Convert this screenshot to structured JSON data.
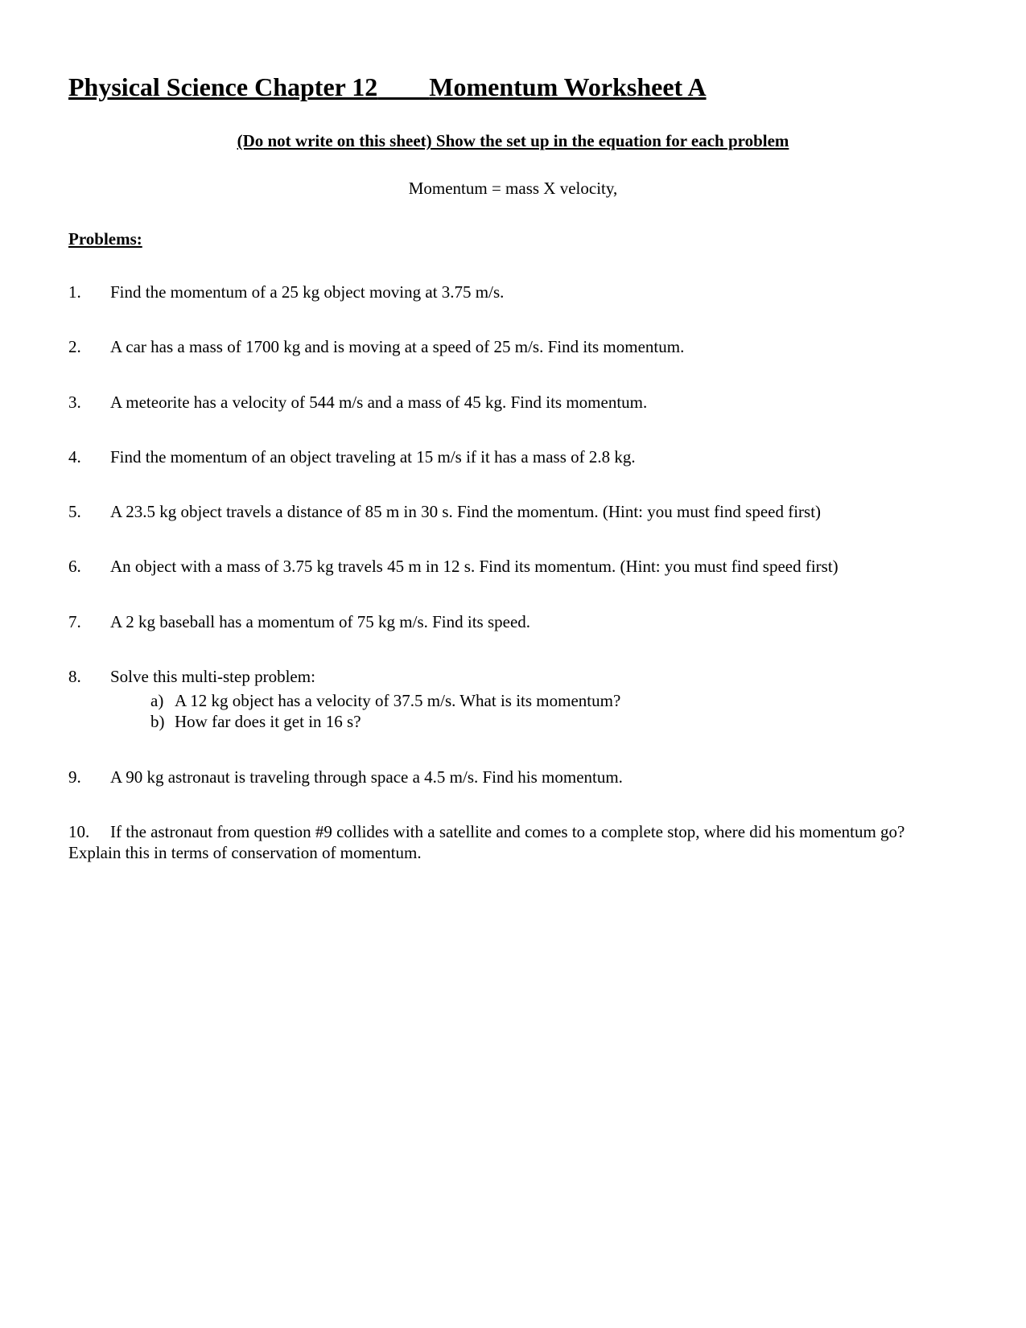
{
  "colors": {
    "background": "#ffffff",
    "text": "#000000"
  },
  "typography": {
    "family": "Times New Roman",
    "title_size_pt": 24,
    "body_size_pt": 16
  },
  "title": {
    "left": "Physical Science Chapter 12",
    "right": "Momentum Worksheet A"
  },
  "instruction": "(Do not write on this sheet)  Show the set up in the equation for each problem",
  "formula": "Momentum = mass X velocity,",
  "section_header": "Problems:",
  "problems": [
    {
      "num": "1.",
      "text": "Find the momentum of a 25 kg object moving at 3.75 m/s."
    },
    {
      "num": "2.",
      "text": "A car has a mass of 1700 kg and is moving at a speed of 25 m/s.  Find its momentum."
    },
    {
      "num": "3.",
      "text": "A meteorite has a velocity of 544 m/s and a mass of 45 kg.  Find its momentum."
    },
    {
      "num": "4.",
      "text": "Find the momentum of an object traveling at 15 m/s if it has a mass of 2.8 kg."
    },
    {
      "num": "5.",
      "text": "A 23.5 kg object travels a distance of 85 m in 30 s.  Find the momentum. (Hint:  you must find speed first)"
    },
    {
      "num": "6.",
      "text": "An object with a mass of 3.75 kg travels 45 m in 12 s.  Find its momentum. (Hint:  you must find speed first)"
    },
    {
      "num": "7.",
      "text": "A 2 kg baseball has a momentum of 75 kg m/s.  Find its speed."
    },
    {
      "num": "8.",
      "text": "Solve this multi-step problem:",
      "subparts": [
        {
          "label": "a)",
          "text": "A 12 kg object has a velocity of 37.5 m/s.  What is its momentum?"
        },
        {
          "label": "b)",
          "text": "How far does it get in 16 s?"
        }
      ]
    },
    {
      "num": "9.",
      "text": "A 90 kg astronaut is traveling through space a 4.5 m/s.  Find his momentum."
    },
    {
      "num": "10.",
      "text": "If the astronaut from question #9 collides with a satellite and comes to a complete stop, where did his momentum go?  Explain this in terms of conservation of momentum."
    }
  ]
}
